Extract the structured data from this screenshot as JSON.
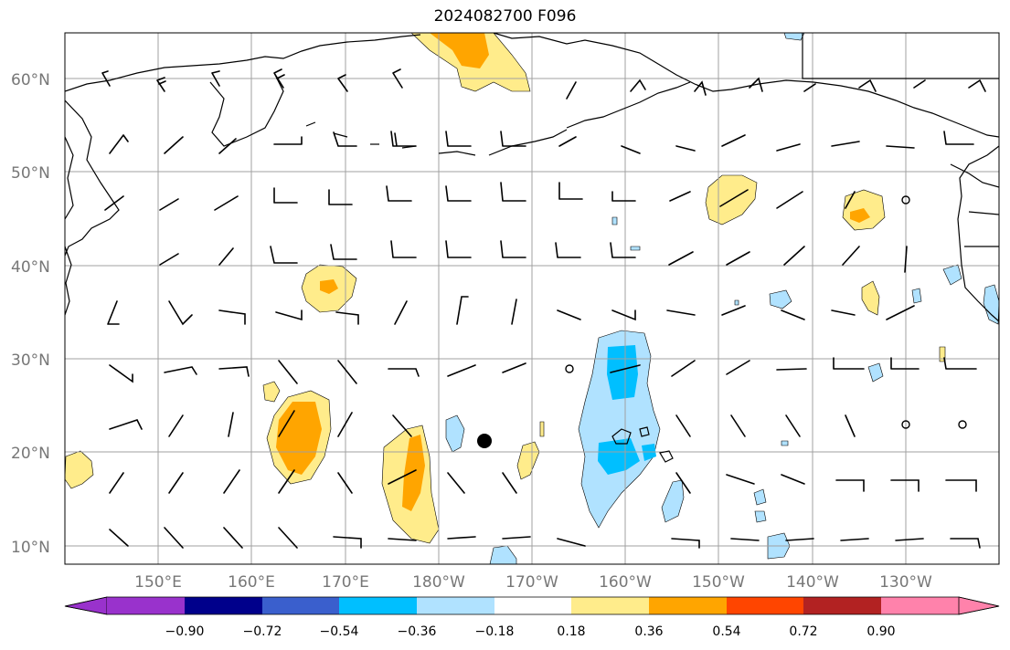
{
  "title": "2024082700 F096",
  "map": {
    "lat_labels": [
      "60°N",
      "50°N",
      "40°N",
      "30°N",
      "20°N",
      "10°N"
    ],
    "lat_values": [
      60,
      50,
      40,
      30,
      20,
      10
    ],
    "lon_labels": [
      "150°E",
      "160°E",
      "170°E",
      "180°W",
      "170°W",
      "160°W",
      "150°W",
      "140°W",
      "130°W"
    ],
    "lon_values": [
      150,
      160,
      170,
      180,
      190,
      200,
      210,
      220,
      230
    ],
    "lon_range": [
      140,
      242
    ],
    "lat_range": [
      8,
      65
    ],
    "grid": true
  },
  "colorbar": {
    "ticks": [
      "−0.90",
      "−0.72",
      "−0.54",
      "−0.36",
      "−0.18",
      "0.18",
      "0.36",
      "0.54",
      "0.72",
      "0.90"
    ],
    "colors": [
      "#9932CC",
      "#00008B",
      "#3A5FCD",
      "#00BFFF",
      "#B0E2FF",
      "#FFFFFF",
      "#FFEC8B",
      "#FFA500",
      "#FF4500",
      "#B22222",
      "#FF82AB"
    ]
  },
  "colors": {
    "pos_light": "#FFEC8B",
    "pos_mid": "#FFA500",
    "neg_light": "#B0E2FF",
    "neg_mid": "#00BFFF",
    "grid": "#9e9e9e",
    "coast": "#000000"
  },
  "markers": {
    "hurricane_dot": {
      "lon": 185,
      "lat": 21
    }
  }
}
